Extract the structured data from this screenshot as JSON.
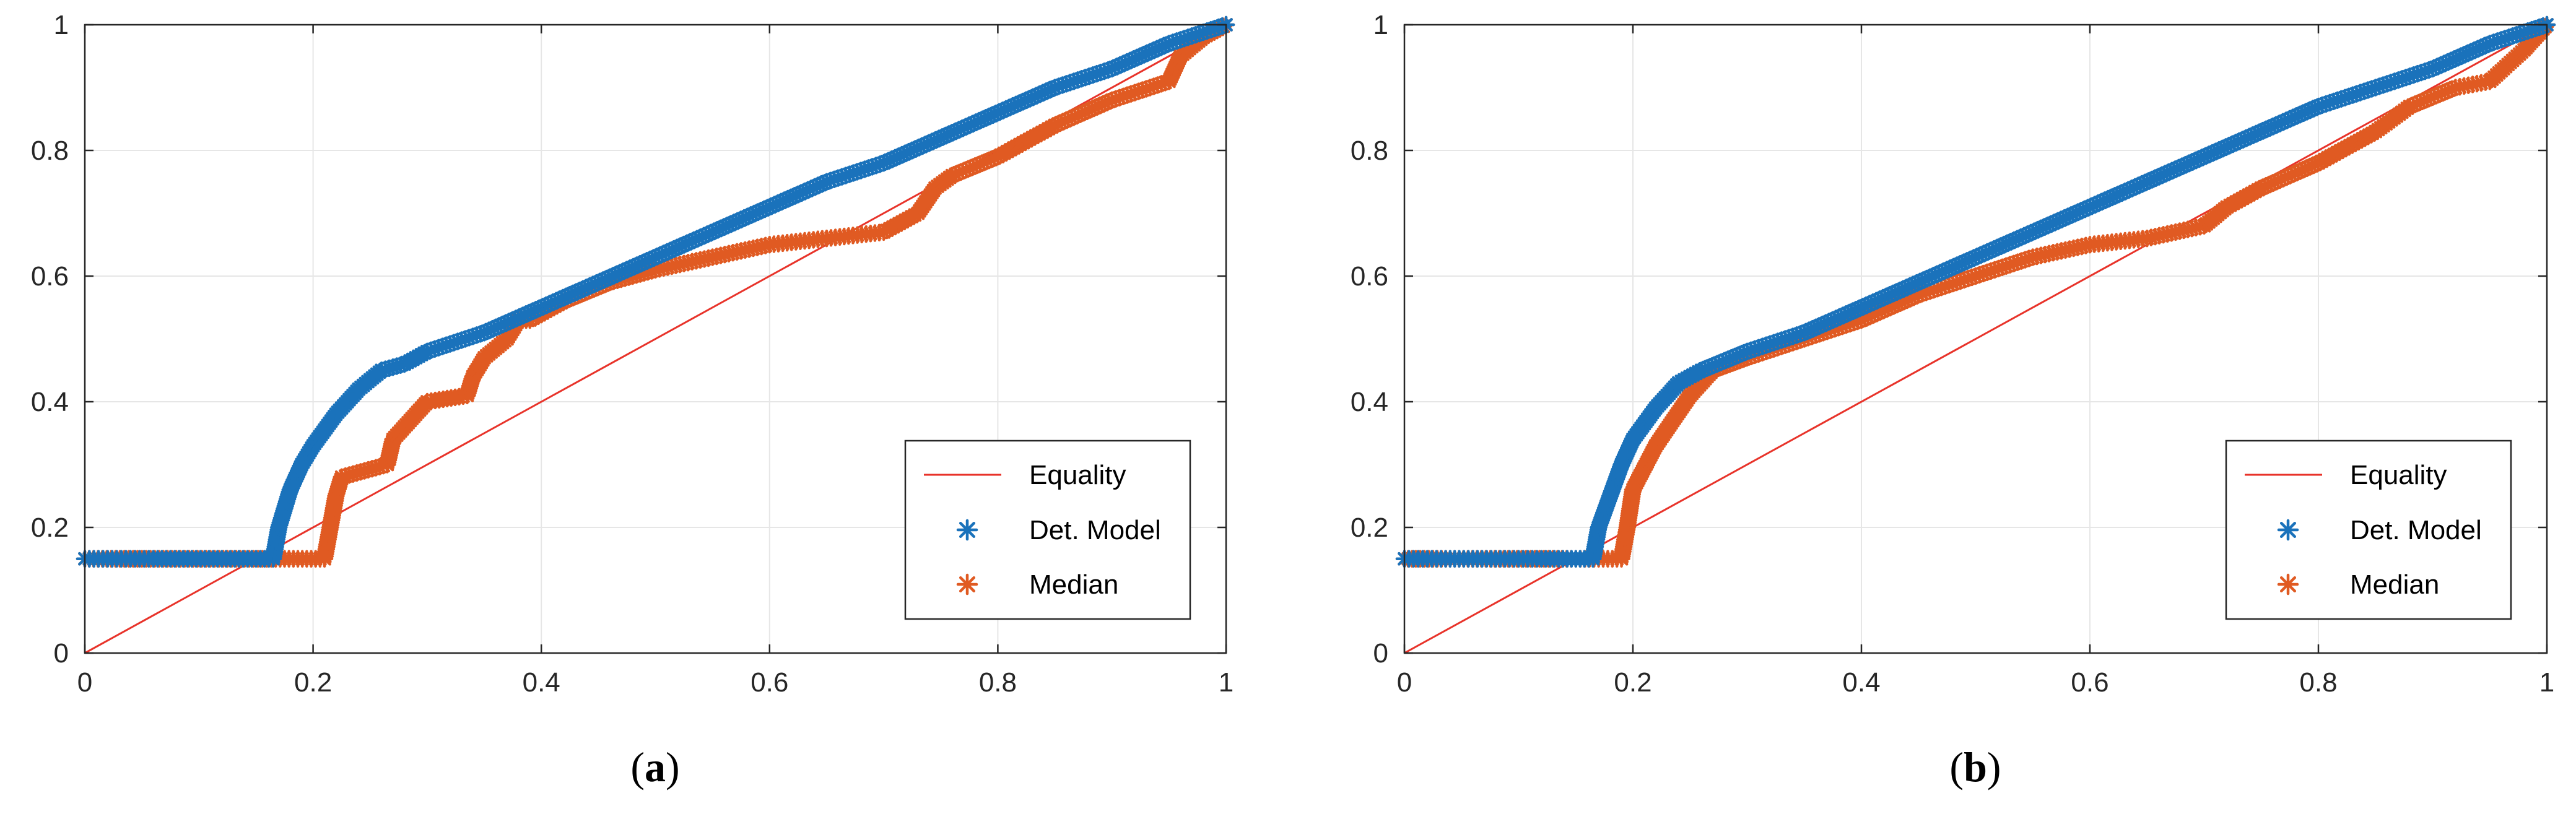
{
  "colors": {
    "equality": "#e8332a",
    "det_model": "#1a72bb",
    "median": "#e05a22",
    "grid": "#e6e6e6",
    "axis": "#262626"
  },
  "chart_data": [
    {
      "type": "scatter",
      "panel": "a",
      "caption": {
        "open": "(",
        "letter": "a",
        "close": ")"
      },
      "xlim": [
        0,
        1
      ],
      "ylim": [
        0,
        1
      ],
      "xticks": [
        "0",
        "0.2",
        "0.4",
        "0.6",
        "0.8",
        "1"
      ],
      "yticks": [
        "0",
        "0.2",
        "0.4",
        "0.6",
        "0.8",
        "1"
      ],
      "grid": true,
      "legend": {
        "position": "bottom-right",
        "entries": [
          "Equality",
          "Det. Model",
          "Median"
        ]
      },
      "series": [
        {
          "name": "Equality",
          "style": "line",
          "x": [
            0,
            1
          ],
          "y": [
            0,
            1
          ]
        },
        {
          "name": "Det. Model",
          "style": "asterisk",
          "x": [
            0,
            0.02,
            0.04,
            0.06,
            0.09,
            0.12,
            0.15,
            0.165,
            0.17,
            0.18,
            0.19,
            0.2,
            0.22,
            0.24,
            0.26,
            0.28,
            0.3,
            0.35,
            0.4,
            0.45,
            0.5,
            0.55,
            0.6,
            0.65,
            0.7,
            0.75,
            0.8,
            0.85,
            0.9,
            0.95,
            1.0
          ],
          "y": [
            0.15,
            0.15,
            0.15,
            0.15,
            0.15,
            0.15,
            0.15,
            0.15,
            0.2,
            0.26,
            0.3,
            0.33,
            0.38,
            0.42,
            0.45,
            0.46,
            0.48,
            0.51,
            0.55,
            0.59,
            0.63,
            0.67,
            0.71,
            0.75,
            0.78,
            0.82,
            0.86,
            0.9,
            0.93,
            0.97,
            1.0
          ]
        },
        {
          "name": "Median",
          "style": "asterisk",
          "x": [
            0,
            0.05,
            0.08,
            0.11,
            0.14,
            0.21,
            0.215,
            0.22,
            0.225,
            0.265,
            0.27,
            0.28,
            0.3,
            0.335,
            0.34,
            0.35,
            0.37,
            0.38,
            0.39,
            0.42,
            0.46,
            0.5,
            0.55,
            0.6,
            0.65,
            0.7,
            0.73,
            0.745,
            0.76,
            0.8,
            0.85,
            0.9,
            0.95,
            0.96,
            0.98,
            1.0
          ],
          "y": [
            0.15,
            0.15,
            0.15,
            0.15,
            0.15,
            0.15,
            0.2,
            0.25,
            0.28,
            0.3,
            0.34,
            0.36,
            0.4,
            0.41,
            0.44,
            0.47,
            0.5,
            0.53,
            0.53,
            0.56,
            0.59,
            0.61,
            0.63,
            0.65,
            0.66,
            0.67,
            0.7,
            0.74,
            0.76,
            0.79,
            0.84,
            0.88,
            0.91,
            0.95,
            0.98,
            1.0
          ]
        }
      ]
    },
    {
      "type": "scatter",
      "panel": "b",
      "caption": {
        "open": "(",
        "letter": "b",
        "close": ")"
      },
      "xlim": [
        0,
        1
      ],
      "ylim": [
        0,
        1
      ],
      "xticks": [
        "0",
        "0.2",
        "0.4",
        "0.6",
        "0.8",
        "1"
      ],
      "yticks": [
        "0",
        "0.2",
        "0.4",
        "0.6",
        "0.8",
        "1"
      ],
      "grid": true,
      "legend": {
        "position": "bottom-right",
        "entries": [
          "Equality",
          "Det. Model",
          "Median"
        ]
      },
      "series": [
        {
          "name": "Equality",
          "style": "line",
          "x": [
            0,
            1
          ],
          "y": [
            0,
            1
          ]
        },
        {
          "name": "Det. Model",
          "style": "asterisk",
          "x": [
            0,
            0.02,
            0.04,
            0.08,
            0.12,
            0.15,
            0.165,
            0.17,
            0.18,
            0.19,
            0.2,
            0.22,
            0.24,
            0.26,
            0.3,
            0.35,
            0.4,
            0.45,
            0.5,
            0.55,
            0.6,
            0.65,
            0.7,
            0.75,
            0.8,
            0.85,
            0.9,
            0.95,
            1.0
          ],
          "y": [
            0.15,
            0.15,
            0.15,
            0.15,
            0.15,
            0.15,
            0.15,
            0.2,
            0.25,
            0.3,
            0.34,
            0.39,
            0.43,
            0.45,
            0.48,
            0.51,
            0.55,
            0.59,
            0.63,
            0.67,
            0.71,
            0.75,
            0.79,
            0.83,
            0.87,
            0.9,
            0.93,
            0.97,
            1.0
          ]
        },
        {
          "name": "Median",
          "style": "asterisk",
          "x": [
            0,
            0.01,
            0.04,
            0.13,
            0.19,
            0.195,
            0.2,
            0.22,
            0.25,
            0.27,
            0.3,
            0.35,
            0.4,
            0.45,
            0.5,
            0.55,
            0.6,
            0.65,
            0.7,
            0.72,
            0.75,
            0.8,
            0.85,
            0.88,
            0.92,
            0.95,
            0.98,
            1.0
          ],
          "y": [
            0.15,
            0.15,
            0.15,
            0.15,
            0.15,
            0.2,
            0.26,
            0.33,
            0.41,
            0.45,
            0.47,
            0.5,
            0.53,
            0.57,
            0.6,
            0.63,
            0.65,
            0.66,
            0.68,
            0.71,
            0.74,
            0.78,
            0.83,
            0.87,
            0.9,
            0.91,
            0.96,
            1.0
          ]
        }
      ]
    }
  ]
}
